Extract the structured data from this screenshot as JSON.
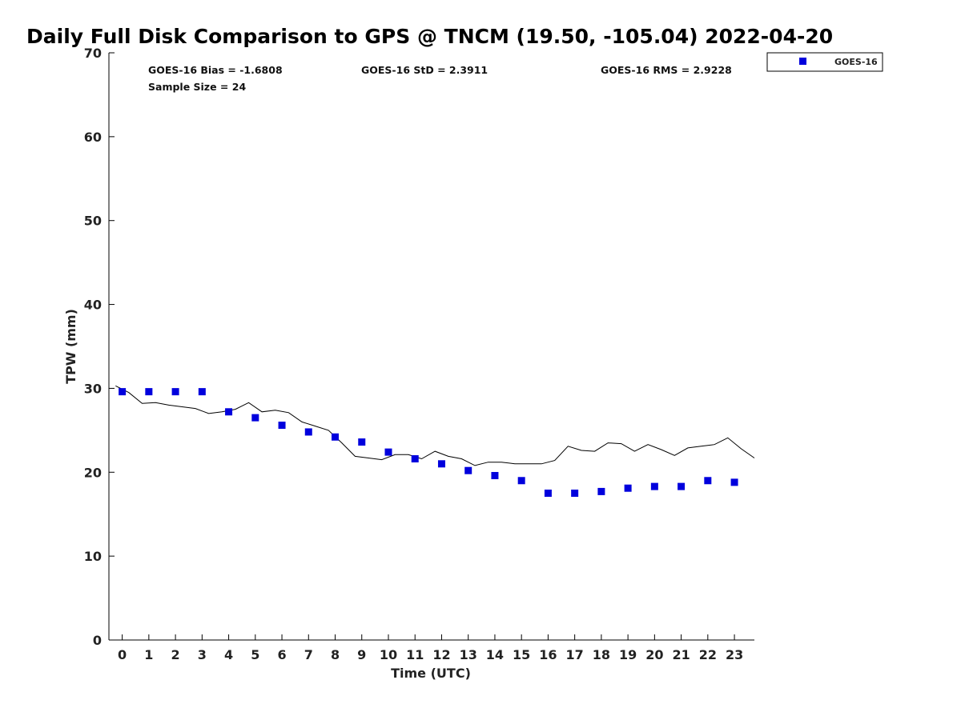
{
  "chart_data": {
    "type": "scatter",
    "title": "Daily Full Disk Comparison to GPS @ TNCM (19.50, -105.04) 2022-04-20",
    "xlabel": "Time (UTC)",
    "ylabel": "TPW (mm)",
    "xlim": [
      -0.5,
      23.75
    ],
    "ylim": [
      0,
      70
    ],
    "x_ticks": [
      "0",
      "1",
      "2",
      "3",
      "4",
      "5",
      "6",
      "7",
      "8",
      "9",
      "10",
      "11",
      "12",
      "13",
      "14",
      "15",
      "16",
      "17",
      "18",
      "19",
      "20",
      "21",
      "22",
      "23"
    ],
    "y_ticks": [
      "0",
      "10",
      "20",
      "30",
      "40",
      "50",
      "60",
      "70"
    ],
    "stats": {
      "bias": "GOES-16 Bias = -1.6808",
      "std": "GOES-16 StD = 2.3911",
      "rms": "GOES-16 RMS = 2.9228",
      "sample": "Sample Size = 24"
    },
    "legend": {
      "position": "top-right",
      "entries": [
        "GOES-16"
      ]
    },
    "series": [
      {
        "name": "GOES-16",
        "kind": "scatter",
        "color": "#0000dd",
        "x": [
          0,
          1,
          2,
          3,
          4,
          5,
          6,
          7,
          8,
          9,
          10,
          11,
          12,
          13,
          14,
          15,
          16,
          17,
          18,
          19,
          20,
          21,
          22,
          23
        ],
        "y": [
          29.6,
          29.6,
          29.6,
          29.6,
          27.2,
          26.5,
          25.6,
          24.8,
          24.2,
          23.6,
          22.4,
          21.6,
          21.0,
          20.2,
          19.6,
          19.0,
          17.5,
          17.5,
          17.7,
          18.1,
          18.3,
          18.3,
          19.0,
          18.8
        ]
      },
      {
        "kind": "line",
        "color": "#000000",
        "x": [
          -0.25,
          0.25,
          0.75,
          1.25,
          1.75,
          2.25,
          2.75,
          3.25,
          3.75,
          4.25,
          4.75,
          5.25,
          5.75,
          6.25,
          6.75,
          7.25,
          7.75,
          8.25,
          8.75,
          9.25,
          9.75,
          10.25,
          10.75,
          11.25,
          11.75,
          12.25,
          12.75,
          13.25,
          13.75,
          14.25,
          14.75,
          15.25,
          15.75,
          16.25,
          16.75,
          17.25,
          17.75,
          18.25,
          18.75,
          19.25,
          19.75,
          20.25,
          20.75,
          21.25,
          21.75,
          22.25,
          22.75,
          23.25,
          23.75
        ],
        "y": [
          30.3,
          29.5,
          28.2,
          28.3,
          28.0,
          27.8,
          27.6,
          27.0,
          27.2,
          27.5,
          28.3,
          27.2,
          27.4,
          27.1,
          26.0,
          25.5,
          25.0,
          23.5,
          21.9,
          21.7,
          21.5,
          22.1,
          22.1,
          21.6,
          22.5,
          21.9,
          21.6,
          20.8,
          21.2,
          21.2,
          21.0,
          21.0,
          21.0,
          21.4,
          23.1,
          22.6,
          22.5,
          23.5,
          23.4,
          22.5,
          23.3,
          22.7,
          22.0,
          22.9,
          23.1,
          23.3,
          24.1,
          22.8,
          21.7
        ]
      }
    ]
  }
}
